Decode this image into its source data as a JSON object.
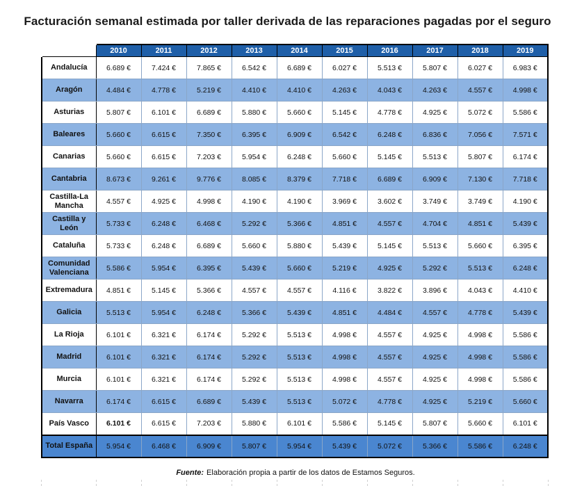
{
  "title": "Facturación semanal estimada por taller derivada de las reparaciones pagadas por el seguro",
  "colors": {
    "header_bg": "#1f5fa8",
    "row_alt_bg": "#8db3e2",
    "total_bg": "#4a86d0",
    "header_text": "#ffffff"
  },
  "table": {
    "years": [
      "2010",
      "2011",
      "2012",
      "2013",
      "2014",
      "2015",
      "2016",
      "2017",
      "2018",
      "2019"
    ],
    "rows": [
      {
        "region": "Andalucía",
        "values": [
          "6.689 €",
          "7.424 €",
          "7.865 €",
          "6.542 €",
          "6.689 €",
          "6.027 €",
          "5.513 €",
          "5.807 €",
          "6.027 €",
          "6.983 €"
        ]
      },
      {
        "region": "Aragón",
        "values": [
          "4.484 €",
          "4.778 €",
          "5.219 €",
          "4.410 €",
          "4.410 €",
          "4.263 €",
          "4.043 €",
          "4.263 €",
          "4.557 €",
          "4.998 €"
        ]
      },
      {
        "region": "Asturias",
        "values": [
          "5.807 €",
          "6.101 €",
          "6.689 €",
          "5.880 €",
          "5.660 €",
          "5.145 €",
          "4.778 €",
          "4.925 €",
          "5.072 €",
          "5.586 €"
        ]
      },
      {
        "region": "Baleares",
        "values": [
          "5.660 €",
          "6.615 €",
          "7.350 €",
          "6.395 €",
          "6.909 €",
          "6.542 €",
          "6.248 €",
          "6.836 €",
          "7.056 €",
          "7.571 €"
        ]
      },
      {
        "region": "Canarias",
        "values": [
          "5.660 €",
          "6.615 €",
          "7.203 €",
          "5.954 €",
          "6.248 €",
          "5.660 €",
          "5.145 €",
          "5.513 €",
          "5.807 €",
          "6.174 €"
        ]
      },
      {
        "region": "Cantabria",
        "values": [
          "8.673 €",
          "9.261 €",
          "9.776 €",
          "8.085 €",
          "8.379 €",
          "7.718 €",
          "6.689 €",
          "6.909 €",
          "7.130 €",
          "7.718 €"
        ]
      },
      {
        "region": "Castilla-La Mancha",
        "values": [
          "4.557 €",
          "4.925 €",
          "4.998 €",
          "4.190 €",
          "4.190 €",
          "3.969 €",
          "3.602 €",
          "3.749 €",
          "3.749 €",
          "4.190 €"
        ]
      },
      {
        "region": "Castilla y León",
        "values": [
          "5.733 €",
          "6.248 €",
          "6.468 €",
          "5.292 €",
          "5.366 €",
          "4.851 €",
          "4.557 €",
          "4.704 €",
          "4.851 €",
          "5.439 €"
        ]
      },
      {
        "region": "Cataluña",
        "values": [
          "5.733 €",
          "6.248 €",
          "6.689 €",
          "5.660 €",
          "5.880 €",
          "5.439 €",
          "5.145 €",
          "5.513 €",
          "5.660 €",
          "6.395 €"
        ]
      },
      {
        "region": "Comunidad Valenciana",
        "values": [
          "5.586 €",
          "5.954 €",
          "6.395 €",
          "5.439 €",
          "5.660 €",
          "5.219 €",
          "4.925 €",
          "5.292 €",
          "5.513 €",
          "6.248 €"
        ]
      },
      {
        "region": "Extremadura",
        "values": [
          "4.851 €",
          "5.145 €",
          "5.366 €",
          "4.557 €",
          "4.557 €",
          "4.116 €",
          "3.822 €",
          "3.896 €",
          "4.043 €",
          "4.410 €"
        ]
      },
      {
        "region": "Galicia",
        "values": [
          "5.513 €",
          "5.954 €",
          "6.248 €",
          "5.366 €",
          "5.439 €",
          "4.851 €",
          "4.484 €",
          "4.557 €",
          "4.778 €",
          "5.439 €"
        ]
      },
      {
        "region": "La Rioja",
        "values": [
          "6.101 €",
          "6.321 €",
          "6.174 €",
          "5.292 €",
          "5.513 €",
          "4.998 €",
          "4.557 €",
          "4.925 €",
          "4.998 €",
          "5.586 €"
        ]
      },
      {
        "region": "Madrid",
        "values": [
          "6.101 €",
          "6.321 €",
          "6.174 €",
          "5.292 €",
          "5.513 €",
          "4.998 €",
          "4.557 €",
          "4.925 €",
          "4.998 €",
          "5.586 €"
        ]
      },
      {
        "region": "Murcia",
        "values": [
          "6.101 €",
          "6.321 €",
          "6.174 €",
          "5.292 €",
          "5.513 €",
          "4.998 €",
          "4.557 €",
          "4.925 €",
          "4.998 €",
          "5.586 €"
        ]
      },
      {
        "region": "Navarra",
        "values": [
          "6.174 €",
          "6.615 €",
          "6.689 €",
          "5.439 €",
          "5.513 €",
          "5.072 €",
          "4.778 €",
          "4.925 €",
          "5.219 €",
          "5.660 €"
        ]
      },
      {
        "region": "País Vasco",
        "values": [
          "6.101 €",
          "6.615 €",
          "7.203 €",
          "5.880 €",
          "6.101 €",
          "5.586 €",
          "5.145 €",
          "5.807 €",
          "5.660 €",
          "6.101 €"
        ]
      }
    ],
    "total": {
      "region": "Total España",
      "values": [
        "5.954 €",
        "6.468 €",
        "6.909 €",
        "5.807 €",
        "5.954 €",
        "5.439 €",
        "5.072 €",
        "5.366 €",
        "5.586 €",
        "6.248 €"
      ]
    }
  },
  "source": {
    "label": "Fuente:",
    "text": "Elaboración propia a partir de los datos de Estamos Seguros."
  }
}
